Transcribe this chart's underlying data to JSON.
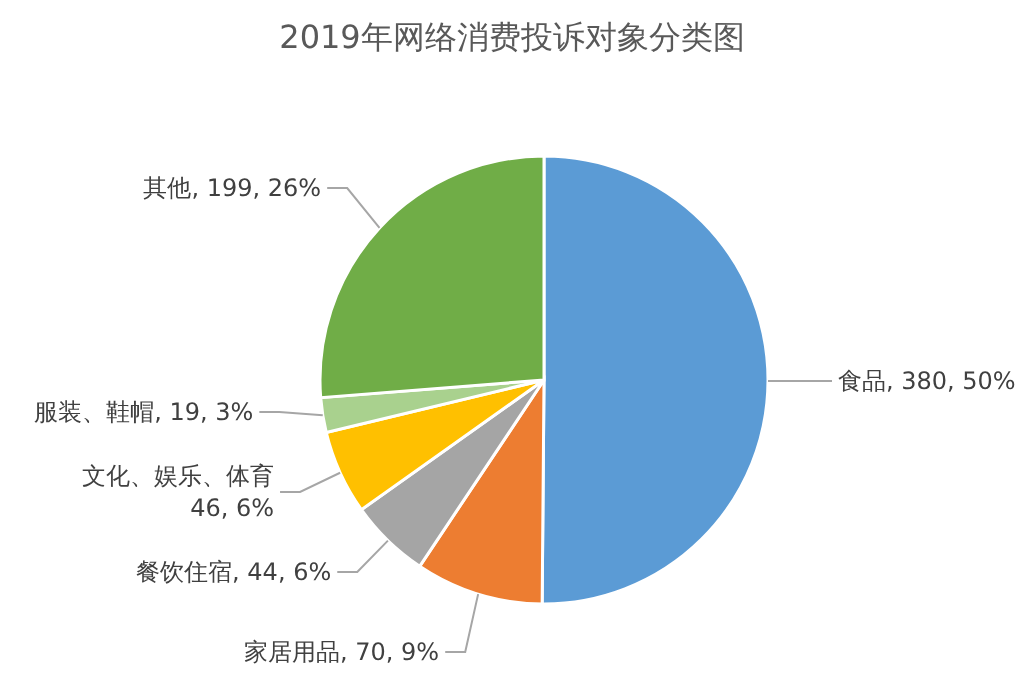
{
  "chart_data": {
    "type": "pie",
    "title": "2019年网络消费投诉对象分类图",
    "categories": [
      "食品",
      "家居用品",
      "餐饮住宿",
      "文化、娱乐、体育",
      "服装、鞋帽",
      "其他"
    ],
    "values": [
      380,
      70,
      44,
      46,
      19,
      199
    ],
    "colors": [
      "#5b9bd5",
      "#ed7d31",
      "#a5a5a5",
      "#ffc000",
      "#a9d18e",
      "#70ad47"
    ],
    "value_labels": [
      "380, 50%",
      "70, 9%",
      "44, 6%",
      "46, 6%",
      "19, 3%",
      "199, 26%"
    ]
  }
}
